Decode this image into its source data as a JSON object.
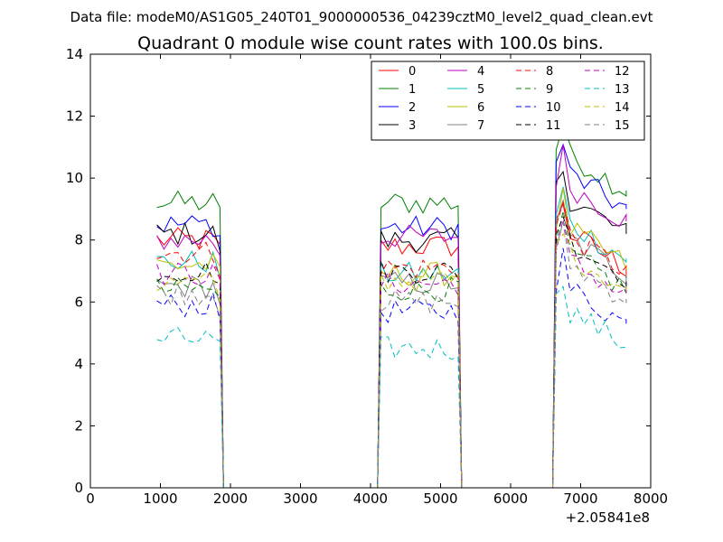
{
  "header": {
    "file_line": "Data file: modeM0/AS1G05_240T01_9000000536_04239cztM0_level2_quad_clean.evt"
  },
  "chart_data": {
    "type": "line",
    "title": "Quadrant 0 module wise count rates with 100.0s bins.",
    "xlabel": "",
    "ylabel": "",
    "x_offset_label": "+2.05841e8",
    "xlim": [
      0,
      8000
    ],
    "ylim": [
      0,
      14
    ],
    "xticks": [
      0,
      1000,
      2000,
      3000,
      4000,
      5000,
      6000,
      7000,
      8000
    ],
    "yticks": [
      0,
      2,
      4,
      6,
      8,
      10,
      12,
      14
    ],
    "grid": false,
    "legend_position": "top-right",
    "segments": [
      {
        "x_start": 950,
        "x_step": 100,
        "points": 10
      },
      {
        "x_start": 4150,
        "x_step": 100,
        "points": 12
      },
      {
        "x_start": 6650,
        "x_step": 100,
        "points": 11
      }
    ],
    "series": [
      {
        "name": "0",
        "color": "#ff0000",
        "dash": "solid",
        "levels": [
          8.0,
          7.8,
          8.5
        ]
      },
      {
        "name": "1",
        "color": "#008000",
        "dash": "solid",
        "levels": [
          9.2,
          9.2,
          11.0
        ]
      },
      {
        "name": "2",
        "color": "#0000ff",
        "dash": "solid",
        "levels": [
          8.5,
          8.4,
          10.4
        ]
      },
      {
        "name": "3",
        "color": "#000000",
        "dash": "solid",
        "levels": [
          8.2,
          8.0,
          9.6
        ]
      },
      {
        "name": "4",
        "color": "#bf00bf",
        "dash": "solid",
        "levels": [
          8.0,
          8.1,
          10.0
        ]
      },
      {
        "name": "5",
        "color": "#00bfbf",
        "dash": "solid",
        "levels": [
          7.3,
          6.9,
          8.8
        ]
      },
      {
        "name": "6",
        "color": "#bfbf00",
        "dash": "solid",
        "levels": [
          7.2,
          6.9,
          8.6
        ]
      },
      {
        "name": "7",
        "color": "#808080",
        "dash": "solid",
        "levels": [
          6.5,
          6.6,
          8.3
        ]
      },
      {
        "name": "8",
        "color": "#ff0000",
        "dash": "dashed",
        "levels": [
          7.6,
          7.1,
          8.4
        ]
      },
      {
        "name": "9",
        "color": "#008000",
        "dash": "dashed",
        "levels": [
          6.4,
          6.4,
          7.8
        ]
      },
      {
        "name": "10",
        "color": "#0000ff",
        "dash": "dashed",
        "levels": [
          5.9,
          5.7,
          6.7
        ]
      },
      {
        "name": "11",
        "color": "#000000",
        "dash": "dashed",
        "levels": [
          7.0,
          7.0,
          8.2
        ]
      },
      {
        "name": "12",
        "color": "#bf00bf",
        "dash": "dashed",
        "levels": [
          6.9,
          6.6,
          7.6
        ]
      },
      {
        "name": "13",
        "color": "#00bfbf",
        "dash": "dashed",
        "levels": [
          4.8,
          4.5,
          6.0
        ]
      },
      {
        "name": "14",
        "color": "#bfbf00",
        "dash": "dashed",
        "levels": [
          6.6,
          6.7,
          7.8
        ]
      },
      {
        "name": "15",
        "color": "#808080",
        "dash": "dashed",
        "levels": [
          6.3,
          6.0,
          7.5
        ]
      }
    ]
  }
}
